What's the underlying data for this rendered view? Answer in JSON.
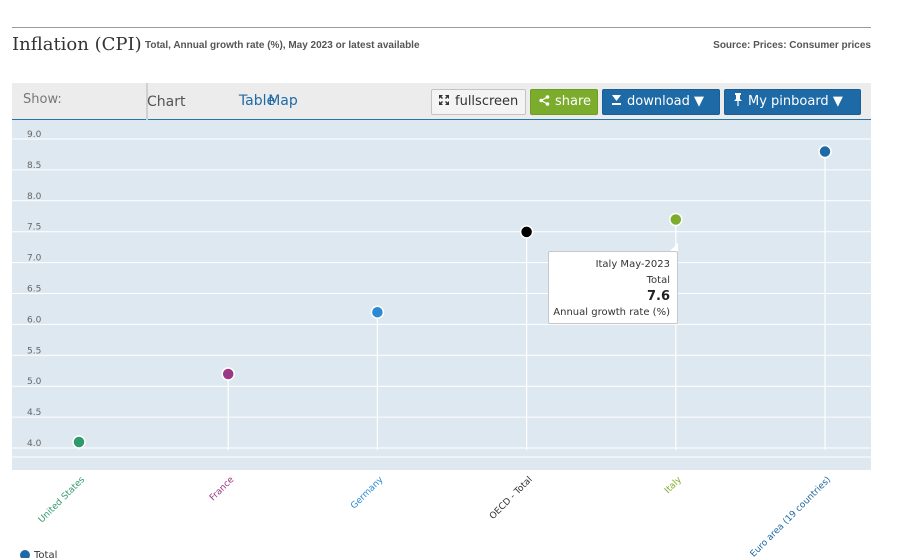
{
  "header": {
    "title": "Inflation (CPI)",
    "subtitle": "Total, Annual growth rate (%), May 2023 or latest available",
    "source": "Source: Prices: Consumer prices"
  },
  "toolbar": {
    "show_label": "Show:",
    "tabs": [
      {
        "label": "Chart",
        "active": true
      },
      {
        "label": "Map",
        "active": false
      },
      {
        "label": "Table",
        "active": false
      }
    ],
    "fullscreen_label": "fullscreen",
    "share_label": "share",
    "download_label": "download ▼",
    "pinboard_label": "My pinboard ▼",
    "colors": {
      "share": "#7cac2b",
      "download": "#1e6aa6",
      "pinboard": "#1e6aa6"
    }
  },
  "tooltip": {
    "line1": "Italy May-2023",
    "line2": "Total",
    "value": "7.6",
    "line4": "Annual growth rate (%)"
  },
  "legend": {
    "label": "Total"
  },
  "chart_data": {
    "type": "scatter",
    "title": "Inflation (CPI)",
    "xlabel": "",
    "ylabel": "",
    "ylim": [
      3.9,
      9.1
    ],
    "yticks": [
      4.0,
      4.5,
      5.0,
      5.5,
      6.0,
      6.5,
      7.0,
      7.5,
      8.0,
      8.5,
      9.0
    ],
    "ytick_labels": [
      "4.0",
      "4.5",
      "5.0",
      "5.5",
      "6.0",
      "6.5",
      "7.0",
      "7.5",
      "8.0",
      "8.5",
      "9.0"
    ],
    "grid": true,
    "legend": "bottom-left",
    "categories": [
      "United States",
      "France",
      "Germany",
      "OECD - Total",
      "Italy",
      "Euro area (19 countries)"
    ],
    "colors": [
      "#2f9a6c",
      "#9b3785",
      "#2b8ad3",
      "#000000",
      "#7cac2b",
      "#1e6aa6"
    ],
    "series": [
      {
        "name": "Total",
        "values": [
          4.0,
          5.1,
          6.1,
          7.4,
          7.6,
          8.7
        ]
      }
    ]
  }
}
